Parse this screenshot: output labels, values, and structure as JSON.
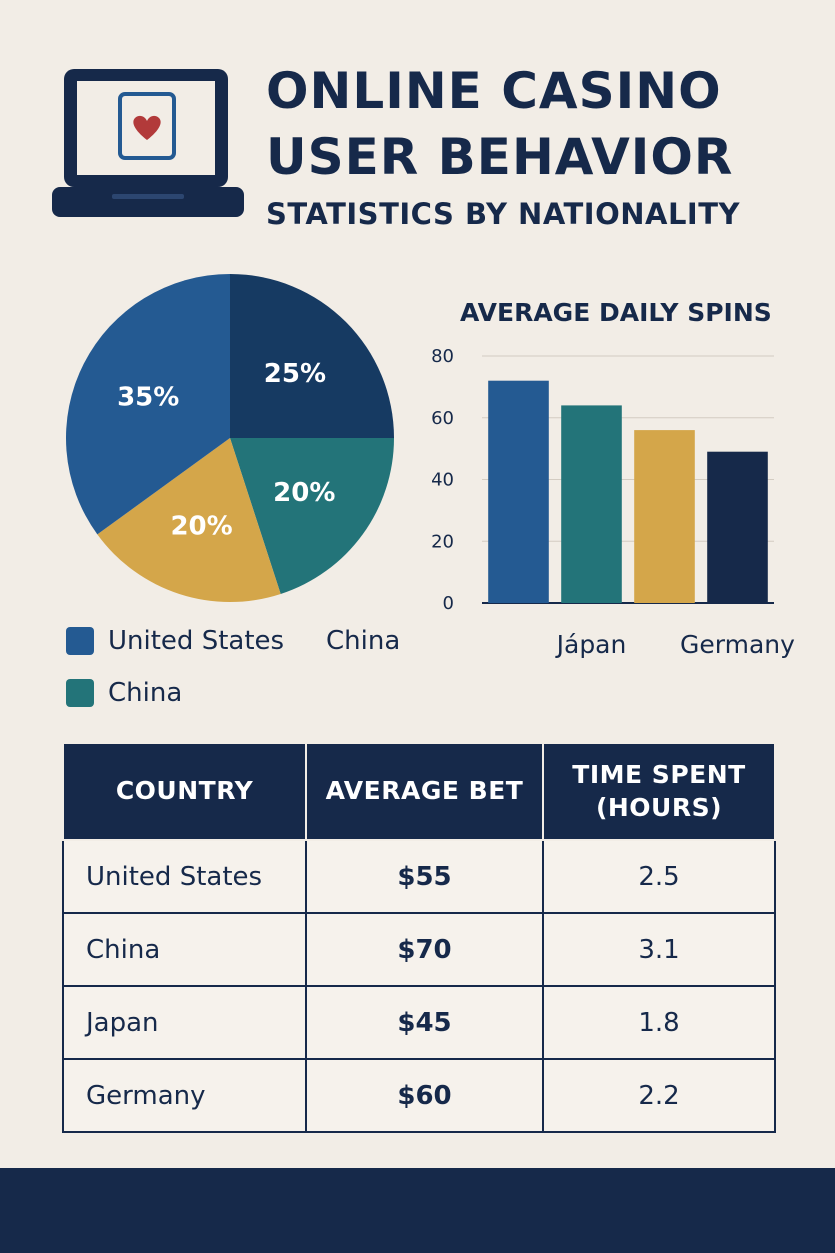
{
  "header": {
    "title_line1": "ONLINE CASINO",
    "title_line2": "USER BEHAVIOR",
    "subtitle": "STATISTICS BY NATIONALITY",
    "logo_icon": "laptop-card-heart-icon"
  },
  "colors": {
    "background": "#f2ede6",
    "navy": "#16294a",
    "blue": "#245a92",
    "dark_navy": "#163a62",
    "teal": "#237479",
    "gold": "#d4a64a",
    "heart": "#b23a3a"
  },
  "chart_data": [
    {
      "type": "pie",
      "slices": [
        {
          "value": 25,
          "label": "25%",
          "color": "#163a62"
        },
        {
          "value": 20,
          "label": "20%",
          "color": "#237479"
        },
        {
          "value": 20,
          "label": "20%",
          "color": "#d4a64a"
        },
        {
          "value": 35,
          "label": "35%",
          "color": "#245a92"
        }
      ],
      "legend": {
        "items": [
          {
            "label": "United States",
            "color": "#245a92"
          },
          {
            "label": "China",
            "color": null
          },
          {
            "label": "China",
            "color": "#237479"
          }
        ]
      }
    },
    {
      "type": "bar",
      "title": "AVERAGE DAILY SPINS",
      "categories": [
        "",
        "Jápan",
        "",
        "Germany"
      ],
      "values": [
        72,
        64,
        56,
        49
      ],
      "colors": [
        "#245a92",
        "#237479",
        "#d4a64a",
        "#16294a"
      ],
      "ylim": [
        0,
        80
      ],
      "yticks": [
        0,
        20,
        40,
        60,
        80
      ],
      "grid": true
    }
  ],
  "table": {
    "headers": [
      "COUNTRY",
      "AVERAGE BET",
      "TIME SPENT\n(HOURS)"
    ],
    "rows": [
      {
        "country": "United States",
        "bet": "$55",
        "time": "2.5"
      },
      {
        "country": "China",
        "bet": "$70",
        "time": "3.1"
      },
      {
        "country": "Japan",
        "bet": "$45",
        "time": "1.8"
      },
      {
        "country": "Germany",
        "bet": "$60",
        "time": "2.2"
      }
    ]
  }
}
